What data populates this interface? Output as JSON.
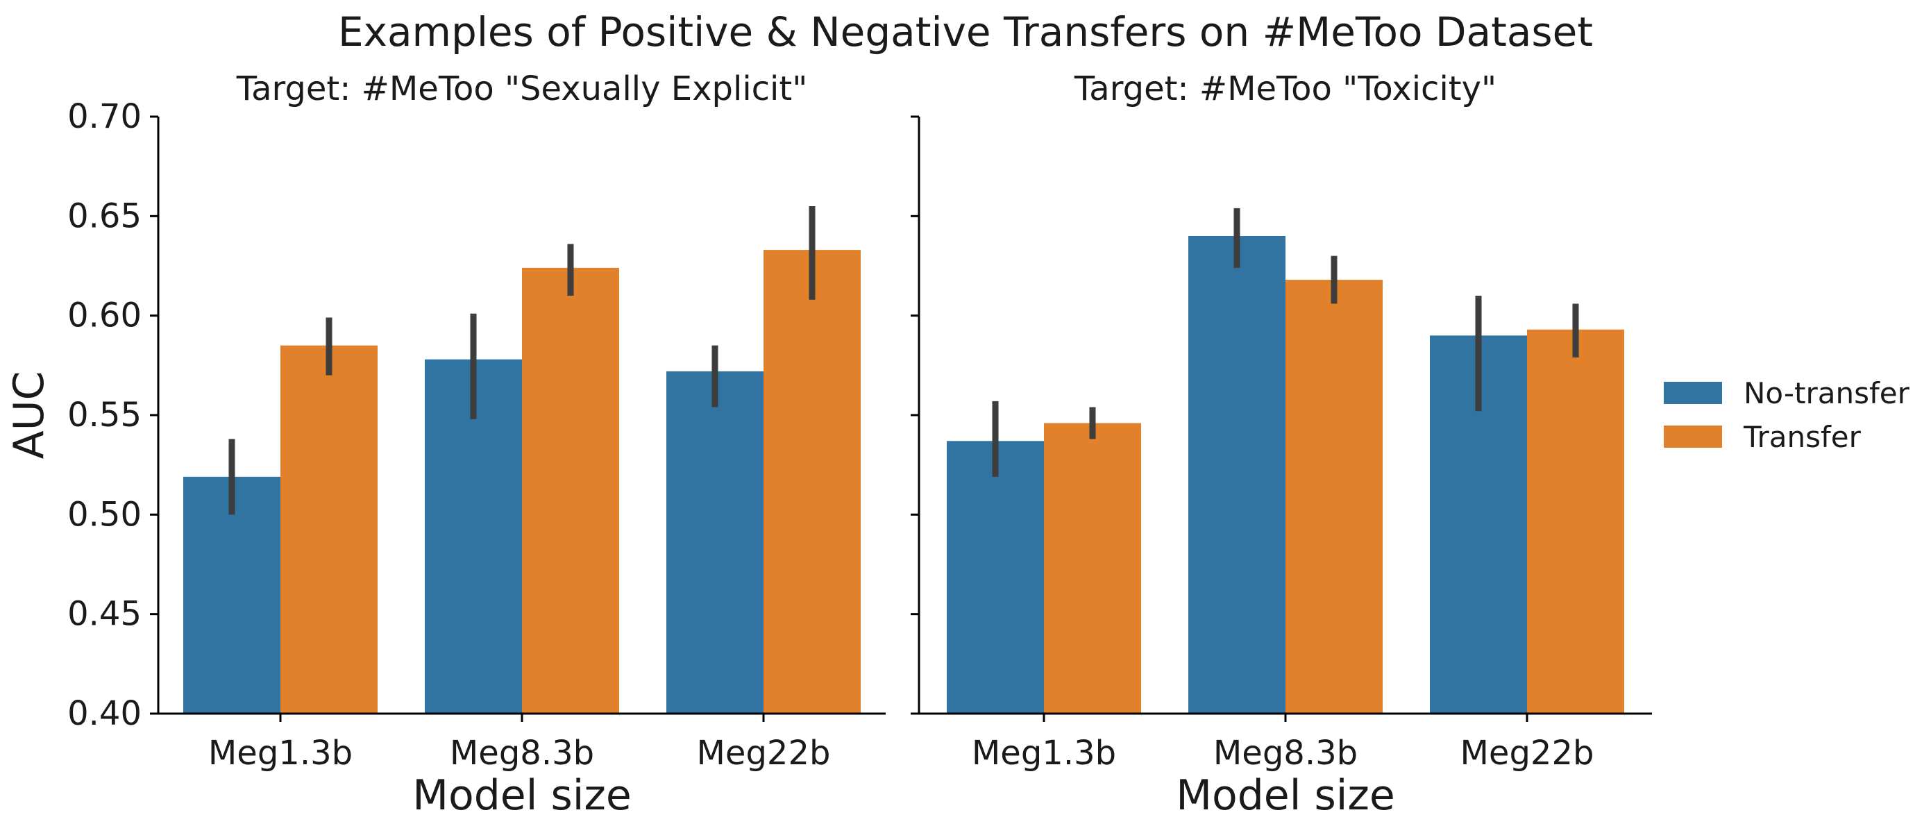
{
  "figure": {
    "title": "Examples of Positive & Negative Transfers on #MeToo Dataset"
  },
  "chart_data": [
    {
      "type": "bar",
      "title": "Target: #MeToo \"Sexually Explicit\"",
      "xlabel": "Model size",
      "ylabel": "AUC",
      "ylim": [
        0.4,
        0.7
      ],
      "yticks": [
        "0.40",
        "0.45",
        "0.50",
        "0.55",
        "0.60",
        "0.65",
        "0.70"
      ],
      "categories": [
        "Meg1.3b",
        "Meg8.3b",
        "Meg22b"
      ],
      "series": [
        {
          "name": "No-transfer",
          "color": "#3274a1",
          "values": [
            0.519,
            0.578,
            0.572
          ],
          "ci_low": [
            0.5,
            0.548,
            0.554
          ],
          "ci_high": [
            0.538,
            0.601,
            0.585
          ]
        },
        {
          "name": "Transfer",
          "color": "#e1812c",
          "values": [
            0.585,
            0.624,
            0.633
          ],
          "ci_low": [
            0.57,
            0.61,
            0.608
          ],
          "ci_high": [
            0.599,
            0.636,
            0.655
          ]
        }
      ],
      "grid": false
    },
    {
      "type": "bar",
      "title": "Target: #MeToo \"Toxicity\"",
      "xlabel": "Model size",
      "ylabel": "",
      "ylim": [
        0.4,
        0.7
      ],
      "categories": [
        "Meg1.3b",
        "Meg8.3b",
        "Meg22b"
      ],
      "series": [
        {
          "name": "No-transfer",
          "color": "#3274a1",
          "values": [
            0.537,
            0.64,
            0.59
          ],
          "ci_low": [
            0.519,
            0.624,
            0.552
          ],
          "ci_high": [
            0.557,
            0.654,
            0.61
          ]
        },
        {
          "name": "Transfer",
          "color": "#e1812c",
          "values": [
            0.546,
            0.618,
            0.593
          ],
          "ci_low": [
            0.538,
            0.606,
            0.579
          ],
          "ci_high": [
            0.554,
            0.63,
            0.606
          ]
        }
      ],
      "grid": false
    }
  ],
  "legend": {
    "placement": "right",
    "items": [
      {
        "label": "No-transfer",
        "color": "#3274a1"
      },
      {
        "label": "Transfer",
        "color": "#e1812c"
      }
    ]
  }
}
